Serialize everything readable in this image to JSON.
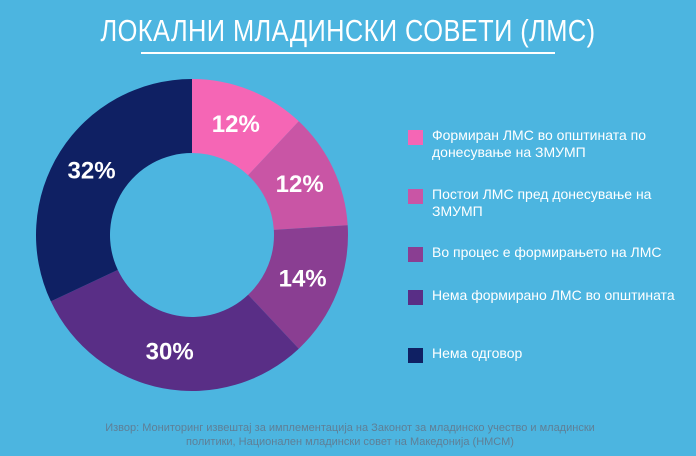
{
  "title": "ЛОКАЛНИ МЛАДИНСКИ СОВЕТИ (ЛМС)",
  "chart_data": {
    "type": "pie",
    "donut": true,
    "title": "ЛОКАЛНИ МЛАДИНСКИ СОВЕТИ (ЛМС)",
    "legend_position": "right",
    "slices": [
      {
        "label": "Формиран ЛМС во општината по донесување на ЗМУМП",
        "value": 12,
        "display": "12%",
        "color": "#f566b5"
      },
      {
        "label": "Постои ЛМС пред донесување на ЗМУМП",
        "value": 12,
        "display": "12%",
        "color": "#c955a5"
      },
      {
        "label": "Во процес е формирањето на ЛМС",
        "value": 14,
        "display": "14%",
        "color": "#8a3e92"
      },
      {
        "label": "Нема формирано ЛМС во општината",
        "value": 30,
        "display": "30%",
        "color": "#592e86"
      },
      {
        "label": "Нема одговор",
        "value": 32,
        "display": "32%",
        "color": "#0f2063"
      }
    ]
  },
  "source": "Извор: Мониторинг извештај за имплементација на Законот за младинско учество и младински политики, Национален младински совет на Македонија (НМСМ)"
}
